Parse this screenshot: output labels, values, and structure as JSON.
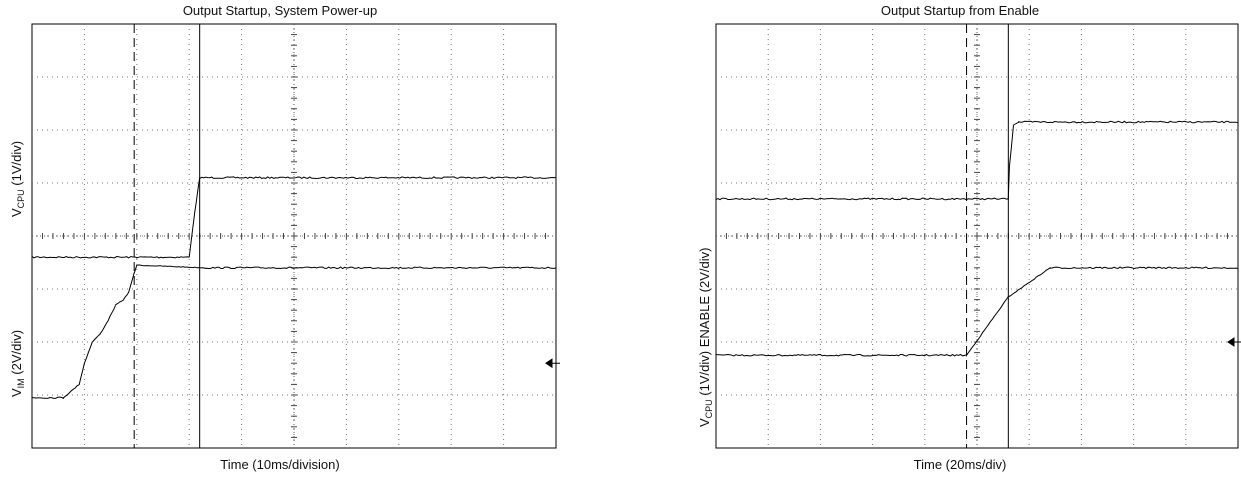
{
  "chart_data": [
    {
      "type": "line",
      "title": "Output Startup, System Power-up",
      "xlabel": "Time (10ms/division)",
      "ylabel_upper": {
        "main": "V",
        "sub": "CPU",
        "rest": " (1V/div)"
      },
      "ylabel_lower": {
        "main": "V",
        "sub": "IM",
        "rest": " (2V/div)"
      },
      "grid": true,
      "divisions": {
        "x": 10,
        "y": 8
      },
      "xlim": [
        0,
        10
      ],
      "ylim": [
        0,
        8
      ],
      "markers": {
        "dashed_cursor_x": 1.95,
        "solid_cursor_x": 3.2,
        "ground_arrow_y": 1.6
      },
      "series": [
        {
          "x": [
            0,
            2.0,
            3.0,
            3.1,
            3.2,
            10
          ],
          "y": [
            3.6,
            3.6,
            3.6,
            4.4,
            5.1,
            5.1
          ]
        },
        {
          "x": [
            0,
            0.6,
            0.9,
            1.0,
            1.15,
            1.3,
            1.45,
            1.6,
            1.75,
            1.85,
            1.95,
            2.0,
            3.3,
            10
          ],
          "y": [
            0.95,
            0.95,
            1.2,
            1.6,
            2.0,
            2.15,
            2.4,
            2.7,
            2.8,
            2.95,
            3.3,
            3.45,
            3.4,
            3.4
          ]
        }
      ]
    },
    {
      "type": "line",
      "title": "Output Startup from Enable",
      "xlabel": "Time (20ms/div)",
      "ylabel_upper": {
        "main": "",
        "sub": "",
        "rest": "ENABLE (2V/div)"
      },
      "ylabel_lower": {
        "main": "V",
        "sub": "CPU",
        "rest": " (1V/div)"
      },
      "grid": true,
      "divisions": {
        "x": 10,
        "y": 8
      },
      "xlim": [
        0,
        10
      ],
      "ylim": [
        0,
        8
      ],
      "markers": {
        "dashed_cursor_x": 4.8,
        "solid_cursor_x": 5.6,
        "ground_arrow_y": 2.0
      },
      "series": [
        {
          "x": [
            0,
            5.6,
            5.62,
            5.7,
            5.8,
            10
          ],
          "y": [
            4.7,
            4.7,
            5.3,
            6.1,
            6.15,
            6.15
          ]
        },
        {
          "x": [
            0,
            4.8,
            5.6,
            6.4,
            10
          ],
          "y": [
            1.75,
            1.75,
            2.85,
            3.4,
            3.4
          ]
        }
      ]
    }
  ]
}
